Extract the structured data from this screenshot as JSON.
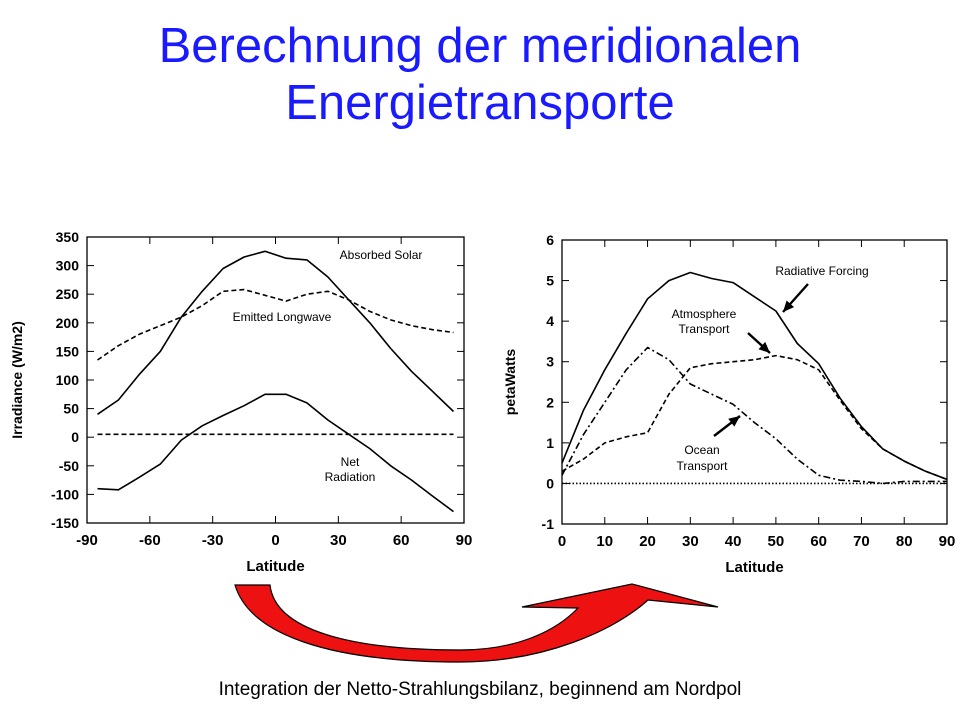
{
  "slide": {
    "title_line1": "Berechnung der meridionalen",
    "title_line2": "Energietransporte",
    "caption": "Integration der Netto-Strahlungsbilanz, beginnend am Nordpol",
    "title_color": "#1a1aff",
    "arrow_color": "#ee1111"
  },
  "chart_data": [
    {
      "type": "line",
      "xlabel": "Latitude",
      "ylabel": "Irradiance (W/m2)",
      "xlim": [
        -90,
        90
      ],
      "ylim": [
        -150,
        350
      ],
      "xticks": [
        "-90",
        "-60",
        "-30",
        "0",
        "30",
        "60",
        "90"
      ],
      "yticks": [
        "350",
        "300",
        "250",
        "200",
        "150",
        "100",
        "50",
        "0",
        "-50",
        "-100",
        "-150"
      ],
      "x": [
        -85,
        -75,
        -65,
        -55,
        -45,
        -35,
        -25,
        -15,
        -5,
        5,
        15,
        25,
        35,
        45,
        55,
        65,
        75,
        85
      ],
      "series": [
        {
          "name": "Absorbed Solar",
          "style": "solid",
          "values": [
            40,
            65,
            110,
            150,
            210,
            255,
            295,
            315,
            325,
            313,
            310,
            280,
            240,
            200,
            155,
            115,
            80,
            45
          ]
        },
        {
          "name": "Emitted Longwave",
          "style": "dashed",
          "values": [
            135,
            160,
            180,
            195,
            210,
            230,
            255,
            258,
            248,
            238,
            250,
            255,
            240,
            220,
            205,
            195,
            188,
            183
          ]
        },
        {
          "name": "Net Radiation",
          "style": "solid",
          "values": [
            -90,
            -92,
            -70,
            -47,
            -5,
            20,
            38,
            55,
            75,
            75,
            60,
            30,
            5,
            -20,
            -50,
            -75,
            -103,
            -130
          ]
        },
        {
          "name": "",
          "style": "dashed",
          "values": [
            5,
            5,
            5,
            5,
            5,
            5,
            5,
            5,
            5,
            5,
            5,
            5,
            5,
            5,
            5,
            5,
            5,
            5
          ]
        }
      ],
      "annotations": [
        "Absorbed Solar",
        "Emitted Longwave",
        "Net Radiation"
      ],
      "grid": false
    },
    {
      "type": "line",
      "xlabel": "Latitude",
      "ylabel": "petaWatts",
      "xlim": [
        0,
        90
      ],
      "ylim": [
        -1,
        6
      ],
      "xticks": [
        "0",
        "10",
        "20",
        "30",
        "40",
        "50",
        "60",
        "70",
        "80",
        "90"
      ],
      "yticks": [
        "6",
        "5",
        "4",
        "3",
        "2",
        "1",
        "0",
        "-1"
      ],
      "series": [
        {
          "name": "Radiative Forcing",
          "style": "solid",
          "x": [
            0,
            5,
            10,
            15,
            20,
            25,
            30,
            35,
            40,
            45,
            50,
            55,
            60,
            65,
            70,
            75,
            80,
            85,
            90
          ],
          "values": [
            0.5,
            1.8,
            2.8,
            3.7,
            4.55,
            5.0,
            5.2,
            5.05,
            4.95,
            4.6,
            4.25,
            3.45,
            2.95,
            2.1,
            1.4,
            0.85,
            0.55,
            0.3,
            0.1
          ]
        },
        {
          "name": "Atmosphere Transport",
          "style": "dashed",
          "x": [
            0,
            5,
            10,
            15,
            20,
            25,
            30,
            35,
            40,
            45,
            50,
            55,
            60,
            65,
            70,
            75,
            80,
            85,
            90
          ],
          "values": [
            0.3,
            0.6,
            1.0,
            1.15,
            1.25,
            2.2,
            2.85,
            2.95,
            3.0,
            3.05,
            3.15,
            3.05,
            2.8,
            2.05,
            1.35,
            0.85,
            0.55,
            0.3,
            0.1
          ]
        },
        {
          "name": "Ocean Transport",
          "style": "dashdot",
          "x": [
            0,
            5,
            10,
            15,
            20,
            25,
            30,
            35,
            40,
            45,
            50,
            55,
            60,
            65,
            70,
            75,
            80,
            85,
            90
          ],
          "values": [
            0.2,
            1.2,
            2.0,
            2.8,
            3.35,
            3.05,
            2.45,
            2.2,
            1.95,
            1.5,
            1.1,
            0.6,
            0.2,
            0.08,
            0.05,
            0.0,
            0.05,
            0.05,
            0.05
          ]
        },
        {
          "name": "",
          "style": "dotted",
          "x": [
            0,
            90
          ],
          "values": [
            0,
            0
          ]
        }
      ],
      "annotations": [
        "Radiative Forcing",
        "Atmosphere",
        "Transport",
        "Ocean",
        "Transport"
      ],
      "grid": false
    }
  ]
}
